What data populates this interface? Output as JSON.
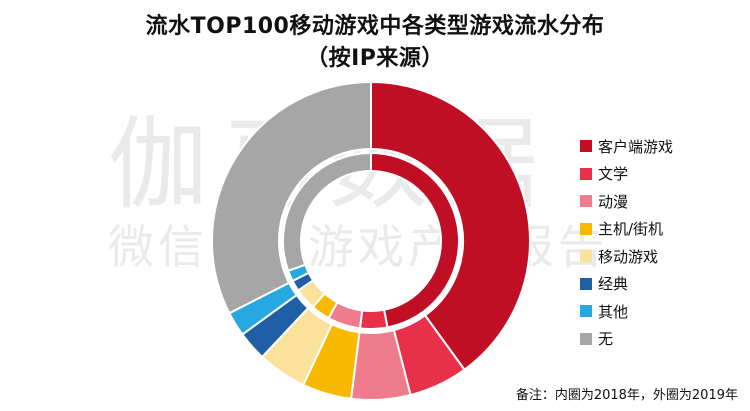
{
  "title": {
    "line1": "流水TOP100移动游戏中各类型游戏流水分布",
    "line2": "（按IP来源）"
  },
  "watermark": {
    "main": "伽马数据",
    "sub": "微信号：游戏产业报告"
  },
  "note": "备注：内圈为2018年，外圈为2019年",
  "chart_data": {
    "type": "donut",
    "categories": [
      "客户端游戏",
      "文学",
      "动漫",
      "主机/街机",
      "移动游戏",
      "经典",
      "其他",
      "无"
    ],
    "colors": [
      "#c00e25",
      "#e8304a",
      "#ef7b8c",
      "#f9b900",
      "#fbe29a",
      "#1f5fa6",
      "#27a8e0",
      "#a6a6a6"
    ],
    "series": [
      {
        "name": "2019年",
        "ring": "outer",
        "values": [
          40,
          6,
          6,
          5,
          5,
          3,
          2.5,
          32.5
        ]
      },
      {
        "name": "2018年",
        "ring": "inner",
        "values": [
          47,
          5,
          6,
          3.5,
          4,
          2,
          2,
          30.5
        ]
      }
    ],
    "note": "内圈为2018年，外圈为2019年"
  }
}
